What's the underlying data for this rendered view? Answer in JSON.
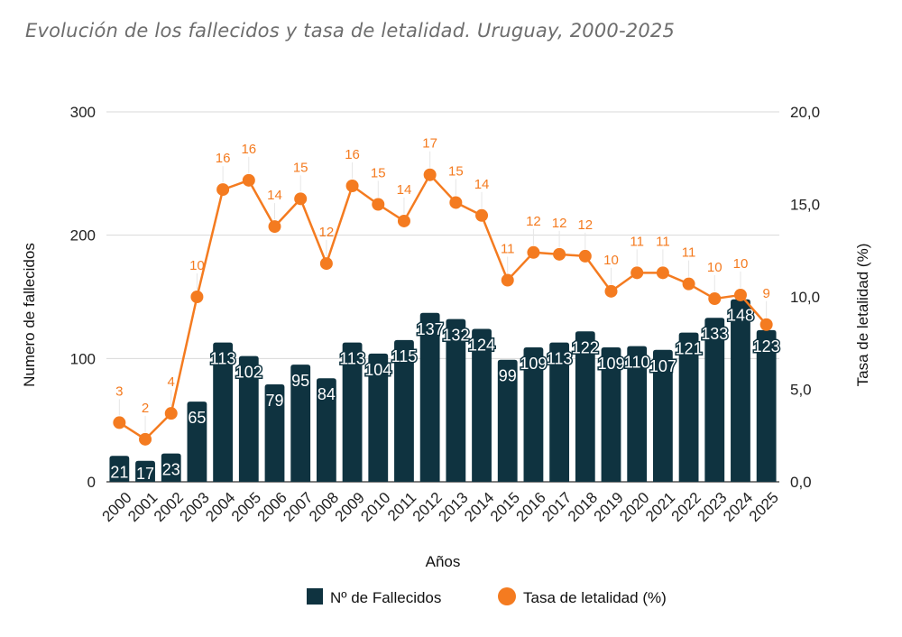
{
  "title": "Evolución de los fallecidos y tasa de letalidad. Uruguay, 2000-2025",
  "chart_data": {
    "type": "bar",
    "title": "Evolución de los fallecidos y tasa de letalidad. Uruguay, 2000-2025",
    "xlabel": "Años",
    "ylabel": "Numero de fallecidos",
    "ylabel_right": "Tasa de letalidad (%)",
    "ylim": [
      0,
      300
    ],
    "ylim_right": [
      0,
      20
    ],
    "yticks": [
      "0",
      "100",
      "200",
      "300"
    ],
    "yticks_right": [
      "0,0",
      "5,0",
      "10,0",
      "15,0",
      "20,0"
    ],
    "grid": true,
    "legend_position": "bottom",
    "colors": {
      "bars": "#0f3340",
      "line": "#f47b20"
    },
    "categories": [
      "2000",
      "2001",
      "2002",
      "2003",
      "2004",
      "2005",
      "2006",
      "2007",
      "2008",
      "2009",
      "2010",
      "2011",
      "2012",
      "2013",
      "2014",
      "2015",
      "2016",
      "2017",
      "2018",
      "2019",
      "2020",
      "2021",
      "2022",
      "2023",
      "2024",
      "2025"
    ],
    "series": [
      {
        "name": "Nº de Fallecidos",
        "type": "bar",
        "axis": "left",
        "values": [
          21,
          17,
          23,
          65,
          113,
          102,
          79,
          95,
          84,
          113,
          104,
          115,
          137,
          132,
          124,
          99,
          109,
          113,
          122,
          109,
          110,
          107,
          121,
          133,
          148,
          123
        ],
        "labels": [
          "21",
          "17",
          "23",
          "65",
          "113",
          "102",
          "79",
          "95",
          "84",
          "113",
          "104",
          "115",
          "137",
          "132",
          "124",
          "99",
          "109",
          "113",
          "122",
          "109",
          "110",
          "107",
          "121",
          "133",
          "148",
          "123"
        ]
      },
      {
        "name": "Tasa de letalidad (%)",
        "type": "line",
        "axis": "right",
        "values": [
          3.2,
          2.3,
          3.7,
          10.0,
          15.8,
          16.3,
          13.8,
          15.3,
          11.8,
          16.0,
          15.0,
          14.1,
          16.6,
          15.1,
          14.4,
          10.9,
          12.4,
          12.3,
          12.2,
          10.3,
          11.3,
          11.3,
          10.7,
          9.9,
          10.1,
          8.5
        ],
        "labels": [
          "3",
          "2",
          "4",
          "10",
          "16",
          "16",
          "14",
          "15",
          "12",
          "16",
          "15",
          "14",
          "17",
          "15",
          "14",
          "11",
          "12",
          "12",
          "12",
          "10",
          "11",
          "11",
          "11",
          "10",
          "10",
          "9"
        ]
      }
    ]
  }
}
